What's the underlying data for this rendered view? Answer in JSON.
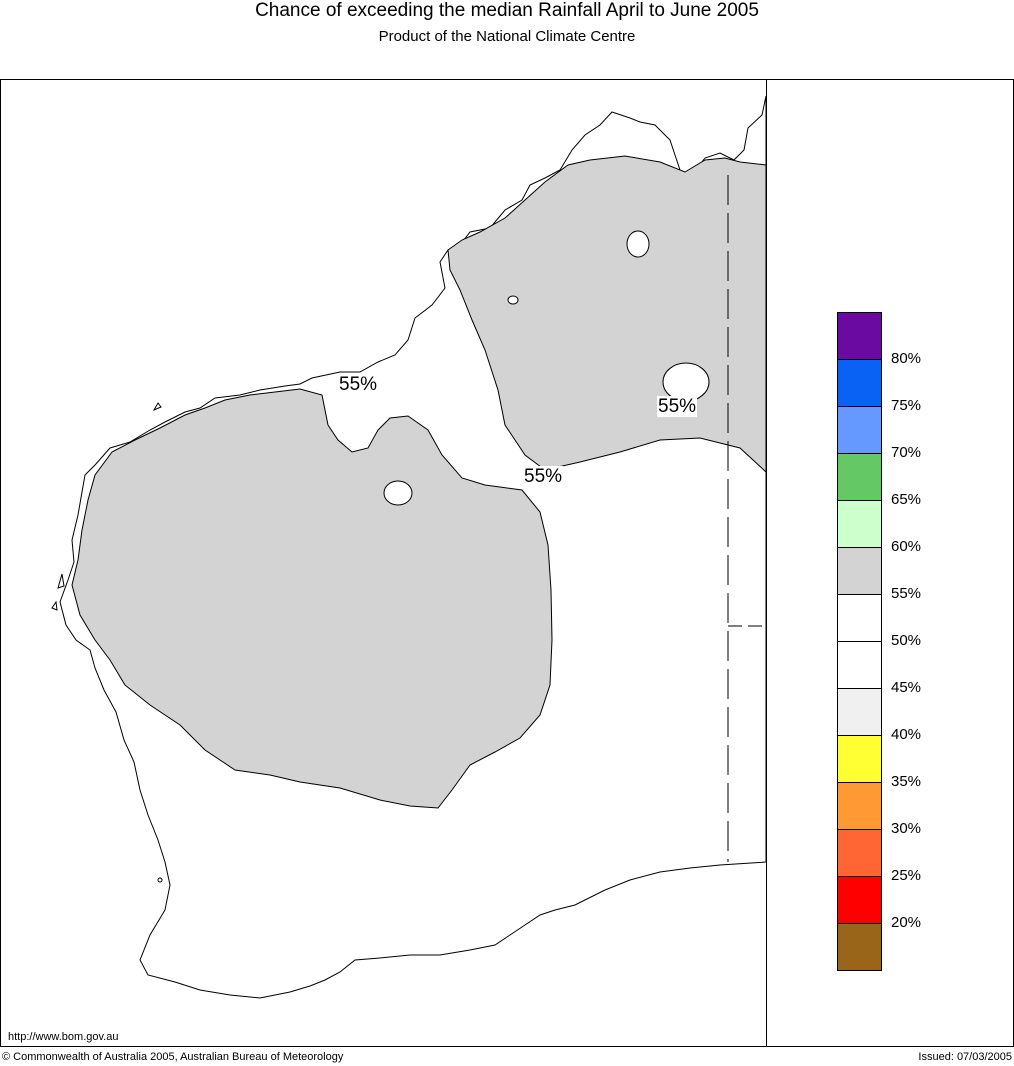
{
  "header": {
    "title": "Chance of exceeding the median Rainfall April to June 2005",
    "subtitle": "Product of the National Climate Centre"
  },
  "colors": {
    "land_fill": "#ffffff",
    "shade_55_60": "#d3d3d3",
    "coastline": "#000000"
  },
  "contour_labels": [
    "55%",
    "55%",
    "55%"
  ],
  "legend": {
    "swatches": [
      {
        "color": "#6a0aa0",
        "icon": "legend-swatch"
      },
      {
        "color": "#0a62f5",
        "icon": "legend-swatch"
      },
      {
        "color": "#6699ff",
        "icon": "legend-swatch"
      },
      {
        "color": "#64c864",
        "icon": "legend-swatch"
      },
      {
        "color": "#ccffcc",
        "icon": "legend-swatch"
      },
      {
        "color": "#d3d3d3",
        "icon": "legend-swatch"
      },
      {
        "color": "#ffffff",
        "icon": "legend-swatch"
      },
      {
        "color": "#ffffff",
        "icon": "legend-swatch"
      },
      {
        "color": "#f0f0f0",
        "icon": "legend-swatch"
      },
      {
        "color": "#ffff33",
        "icon": "legend-swatch"
      },
      {
        "color": "#ff9933",
        "icon": "legend-swatch"
      },
      {
        "color": "#ff6633",
        "icon": "legend-swatch"
      },
      {
        "color": "#ff0000",
        "icon": "legend-swatch"
      },
      {
        "color": "#996619",
        "icon": "legend-swatch"
      }
    ],
    "labels": [
      "80%",
      "75%",
      "70%",
      "65%",
      "60%",
      "55%",
      "50%",
      "45%",
      "40%",
      "35%",
      "30%",
      "25%",
      "20%"
    ]
  },
  "footer": {
    "url": "http://www.bom.gov.au",
    "copyright": "© Commonwealth of Australia 2005, Australian Bureau of Meteorology",
    "issued": "Issued: 07/03/2005"
  }
}
